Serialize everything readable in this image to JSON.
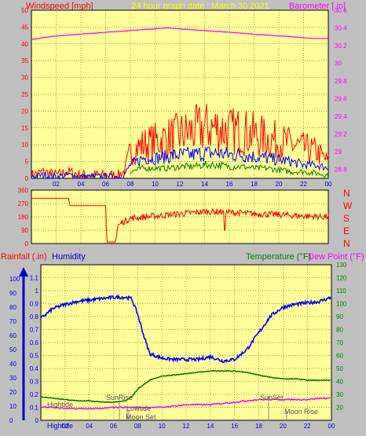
{
  "colors": {
    "background": "#c0c0c0",
    "plot_bg": "#ffff99",
    "wind_gust": "#ff0000",
    "wind_avg": "#0000ff",
    "wind_low": "#008000",
    "barometer": "#ff00ff",
    "direction": "#ff0000",
    "humidity": "#0000ff",
    "temperature": "#007700",
    "dew_point": "#ff00ff",
    "rain": "#0000cc",
    "marker_text": "#555555",
    "rain_axis": "#0000cc",
    "temp_axis": "#008000",
    "baro_axis": "#ff00ff",
    "label_red": "#ff0000"
  },
  "header": {
    "windspeed_label": "Windspeed [mph]",
    "title": "24 hour graph date : March 30 2021",
    "barometer_label": "Barometer [.in]"
  },
  "section_labels": {
    "rainfall": "Rainfall (.in)",
    "humidity": "Humidity",
    "temperature": "Temperature (°F)",
    "dew_point": "Dew Point (°F)"
  },
  "compass": [
    "N",
    "W",
    "S",
    "E",
    "N"
  ],
  "markers": [
    "Hightide",
    "SunRise",
    "Lowtide",
    "Moon Set",
    "SunSet",
    "Moon Rise"
  ],
  "bottom_label": "Hightide",
  "chart_data": [
    {
      "type": "line",
      "title": "24 hour graph date : March 30 2021",
      "ylabel": "Windspeed [mph]",
      "y2label": "Barometer [.in]",
      "x_ticks": [
        "02",
        "04",
        "06",
        "08",
        "10",
        "12",
        "14",
        "16",
        "18",
        "20",
        "22",
        "00"
      ],
      "xlim": [
        0,
        24
      ],
      "ylim": [
        0,
        50
      ],
      "y_ticks": [
        0,
        5,
        10,
        15,
        20,
        25,
        30,
        35,
        40,
        45,
        50
      ],
      "y2lim": [
        28.7,
        30.6
      ],
      "y2_ticks": [
        28.8,
        29,
        29.2,
        29.4,
        29.6,
        29.8,
        30,
        30.2,
        30.4,
        30.6
      ],
      "series": [
        {
          "name": "gust",
          "x": [
            0,
            1,
            2,
            3,
            4,
            5,
            6,
            7,
            7.5,
            8,
            9,
            10,
            11,
            12,
            13,
            14,
            15,
            16,
            17,
            18,
            19,
            20,
            21,
            22,
            23,
            24
          ],
          "y": [
            1,
            2,
            1,
            2,
            1,
            1,
            1,
            1,
            2,
            8,
            10,
            11,
            12,
            13,
            14,
            15,
            15,
            14,
            14,
            13,
            12,
            11,
            10,
            9,
            8,
            5
          ]
        },
        {
          "name": "average",
          "x": [
            0,
            1,
            2,
            3,
            4,
            5,
            6,
            7,
            7.5,
            8,
            9,
            10,
            11,
            12,
            13,
            14,
            15,
            16,
            17,
            18,
            19,
            20,
            21,
            22,
            23,
            24
          ],
          "y": [
            0.5,
            1,
            0.5,
            1,
            0.5,
            0.5,
            0.5,
            0.5,
            1,
            4,
            6,
            6,
            6.5,
            7,
            7,
            7.5,
            7.5,
            7,
            7,
            6.5,
            6,
            5.5,
            5,
            4,
            4,
            3
          ]
        },
        {
          "name": "low",
          "x": [
            8,
            9,
            10,
            11,
            12,
            13,
            14,
            15,
            16,
            17,
            18,
            19,
            20,
            21,
            22,
            23,
            24
          ],
          "y": [
            2,
            3,
            3,
            3,
            3.5,
            3.5,
            4,
            4,
            3.5,
            3.5,
            3,
            3,
            2.5,
            2,
            2,
            1.5,
            1
          ]
        },
        {
          "name": "barometer",
          "axis": "y2",
          "x": [
            0,
            1,
            2,
            3,
            4,
            5,
            6,
            7,
            8,
            9,
            10,
            11,
            12,
            13,
            14,
            15,
            16,
            17,
            18,
            19,
            20,
            21,
            22,
            23,
            24
          ],
          "y": [
            30.27,
            30.29,
            30.31,
            30.32,
            30.33,
            30.34,
            30.35,
            30.36,
            30.37,
            30.38,
            30.39,
            30.4,
            30.39,
            30.38,
            30.37,
            30.36,
            30.35,
            30.34,
            30.33,
            30.32,
            30.31,
            30.3,
            30.29,
            30.28,
            30.28
          ]
        }
      ],
      "grid": true
    },
    {
      "type": "line",
      "ylabel": "Wind direction",
      "xlim": [
        0,
        24
      ],
      "ylim": [
        0,
        360
      ],
      "y_ticks": [
        0,
        90,
        180,
        270,
        360
      ],
      "series": [
        {
          "name": "direction",
          "x": [
            0,
            3,
            3.1,
            6,
            6.1,
            6.2,
            6.8,
            7,
            7.5,
            8,
            10,
            12,
            14,
            15,
            16,
            18,
            20,
            22,
            24
          ],
          "y": [
            305,
            305,
            255,
            255,
            10,
            10,
            10,
            125,
            150,
            170,
            185,
            200,
            215,
            215,
            210,
            200,
            195,
            185,
            180
          ]
        }
      ],
      "grid": true
    },
    {
      "type": "line",
      "x_ticks": [
        "02",
        "04",
        "06",
        "08",
        "10",
        "12",
        "14",
        "16",
        "18",
        "20",
        "22",
        "00"
      ],
      "xlim": [
        0,
        24
      ],
      "ylim": [
        0,
        1.2
      ],
      "y_ticks": [
        0,
        0.1,
        0.2,
        0.3,
        0.4,
        0.5,
        0.6,
        0.7,
        0.8,
        0.9,
        1,
        1.1
      ],
      "y_left2_ticks": [
        0,
        10,
        20,
        30,
        40,
        50,
        60,
        70,
        80,
        90,
        100
      ],
      "y2lim": [
        10,
        130
      ],
      "y2_ticks": [
        20,
        30,
        40,
        50,
        60,
        70,
        80,
        90,
        100,
        110,
        120,
        130
      ],
      "series": [
        {
          "name": "humidity",
          "axis": "y_left2",
          "x": [
            0,
            1,
            2,
            3,
            4,
            5,
            6,
            7,
            7.5,
            8,
            8.5,
            9,
            10,
            11,
            12,
            13,
            14,
            15,
            16,
            17,
            18,
            19,
            20,
            21,
            22,
            23,
            24
          ],
          "y": [
            72,
            79,
            82,
            84,
            85,
            86,
            87,
            87,
            86,
            75,
            60,
            47,
            44,
            43,
            43,
            43,
            45,
            42,
            43,
            50,
            62,
            74,
            80,
            82,
            83,
            84,
            87
          ]
        },
        {
          "name": "temperature",
          "axis": "y2",
          "x": [
            0,
            1,
            2,
            3,
            4,
            5,
            6,
            7,
            7.5,
            8,
            9,
            10,
            11,
            12,
            13,
            14,
            15,
            16,
            17,
            18,
            19,
            20,
            21,
            22,
            23,
            24
          ],
          "y": [
            28,
            27,
            26,
            25,
            25,
            24,
            24,
            25,
            28,
            34,
            41,
            44,
            45,
            46,
            47,
            48,
            48,
            48,
            47,
            45,
            43,
            42,
            42,
            41,
            41,
            41
          ]
        },
        {
          "name": "dew_point",
          "axis": "y2",
          "x": [
            0,
            1,
            2,
            3,
            4,
            5,
            6,
            7,
            8,
            9,
            10,
            11,
            12,
            13,
            14,
            15,
            16,
            17,
            18,
            19,
            20,
            21,
            22,
            23,
            24
          ],
          "y": [
            20,
            20,
            19,
            19,
            19,
            19,
            20,
            20,
            20,
            20,
            20,
            21,
            22,
            22,
            22,
            23,
            24,
            25,
            26,
            26,
            26,
            26,
            26,
            27,
            27
          ]
        }
      ],
      "grid": true
    }
  ]
}
